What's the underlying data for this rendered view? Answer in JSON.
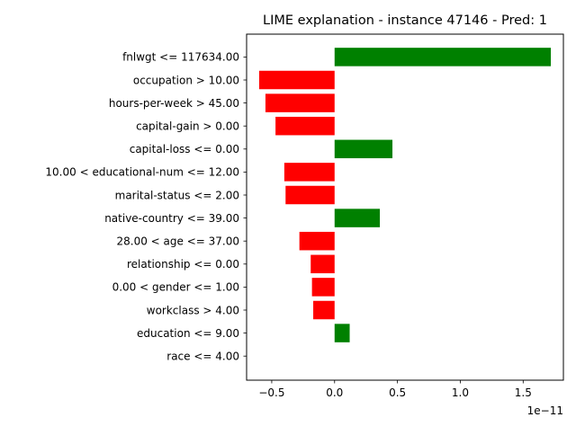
{
  "chart_data": {
    "type": "bar",
    "orientation": "horizontal",
    "title": "LIME explanation - instance 47146 - Pred: 1",
    "xlabel": "",
    "ylabel": "",
    "x_offset_label": "1e−11",
    "xlim": [
      -0.7,
      1.82
    ],
    "x_ticks": [
      -0.5,
      0.0,
      0.5,
      1.0,
      1.5
    ],
    "x_tick_labels": [
      "−0.5",
      "0.0",
      "0.5",
      "1.0",
      "1.5"
    ],
    "grid": false,
    "legend": "none",
    "positive_color": "#008000",
    "negative_color": "#ff0000",
    "categories": [
      "fnlwgt <= 117634.00",
      "occupation > 10.00",
      "hours-per-week > 45.00",
      "capital-gain > 0.00",
      "capital-loss <= 0.00",
      "10.00 < educational-num <= 12.00",
      "marital-status <= 2.00",
      "native-country <= 39.00",
      "28.00 < age <= 37.00",
      "relationship <= 0.00",
      "0.00 < gender <= 1.00",
      "workclass > 4.00",
      "education <= 9.00",
      "race <= 4.00"
    ],
    "values": [
      1.72,
      -0.6,
      -0.55,
      -0.47,
      0.46,
      -0.4,
      -0.39,
      0.36,
      -0.28,
      -0.19,
      -0.18,
      -0.17,
      0.12,
      0.0
    ]
  }
}
